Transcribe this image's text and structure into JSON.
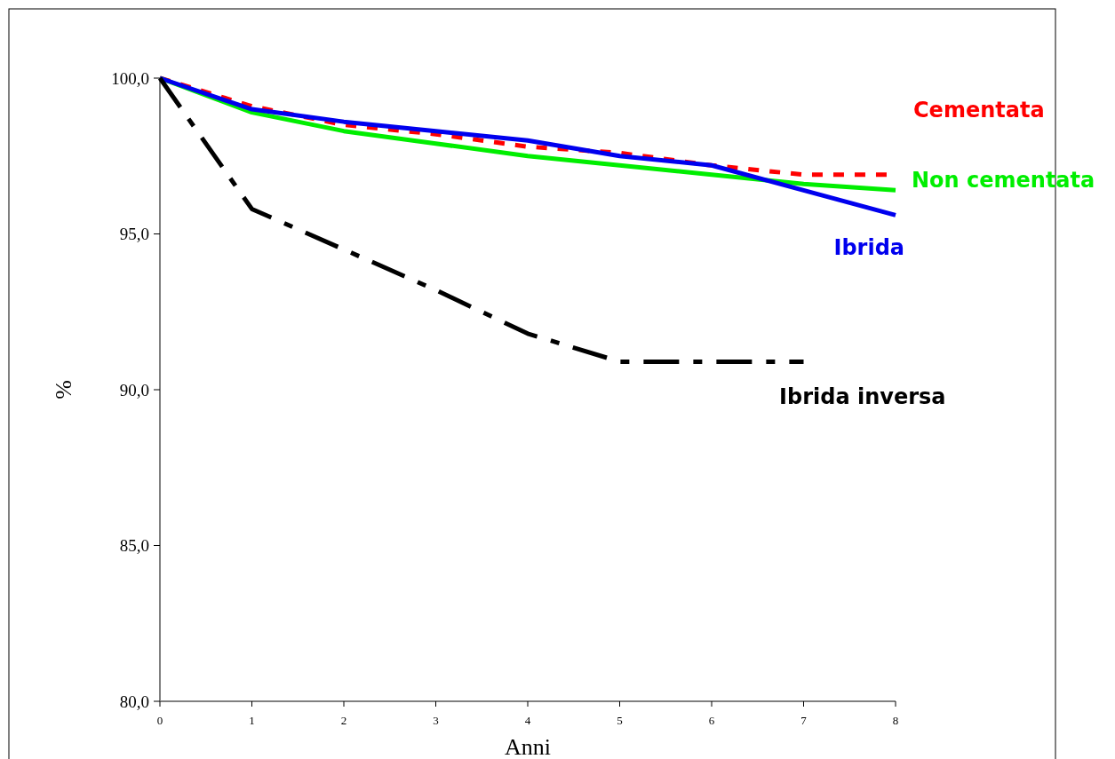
{
  "chart_data": {
    "type": "line",
    "xlabel": "Anni",
    "ylabel": "%",
    "x": [
      0,
      1,
      2,
      3,
      4,
      5,
      6,
      7,
      8
    ],
    "xlim": [
      0,
      8
    ],
    "xticks": [
      0,
      1,
      2,
      3,
      4,
      5,
      6,
      7,
      8
    ],
    "ylim": [
      80,
      100
    ],
    "yticks": [
      {
        "value": 80,
        "label": "80,0"
      },
      {
        "value": 85,
        "label": "85,0"
      },
      {
        "value": 90,
        "label": "90,0"
      },
      {
        "value": 95,
        "label": "95,0"
      },
      {
        "value": 100,
        "label": "100,0"
      }
    ],
    "grid": false,
    "marker": "none",
    "series": [
      {
        "name": "Cementata",
        "color": "#ff0000",
        "line_style": "dotted",
        "values": [
          100,
          99.1,
          98.5,
          98.2,
          97.8,
          97.6,
          97.2,
          96.9,
          96.9
        ]
      },
      {
        "name": "Non cementata",
        "color": "#00ee00",
        "line_style": "solid",
        "values": [
          100,
          98.9,
          98.3,
          97.9,
          97.5,
          97.2,
          96.9,
          96.6,
          96.4
        ]
      },
      {
        "name": "Ibrida",
        "color": "#0000ee",
        "line_style": "solid",
        "values": [
          100,
          99.0,
          98.6,
          98.3,
          98.0,
          97.5,
          97.2,
          96.4,
          95.6
        ]
      },
      {
        "name": "Ibrida inversa",
        "color": "#000000",
        "line_style": "dashed",
        "values": [
          100,
          95.8,
          94.5,
          93.2,
          91.8,
          90.9,
          90.9,
          90.9,
          null
        ]
      }
    ]
  }
}
